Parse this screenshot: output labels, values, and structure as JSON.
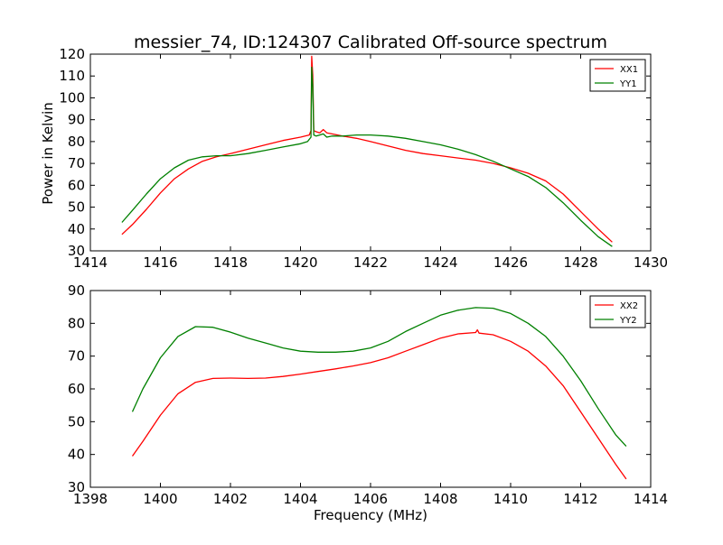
{
  "figure": {
    "title": "messier_74, ID:124307 Calibrated Off-source spectrum",
    "xlabel": "Frequency (MHz)",
    "ylabel": "Power in Kelvin"
  },
  "colors": {
    "red": "#ff0000",
    "green": "#008000",
    "axis": "#000000"
  },
  "chart_data": [
    {
      "type": "line",
      "title": "messier_74, ID:124307 Calibrated Off-source spectrum",
      "xlabel": "",
      "ylabel": "Power in Kelvin",
      "xlim": [
        1414,
        1430
      ],
      "ylim": [
        30,
        120
      ],
      "xticks": [
        "1414",
        "1416",
        "1418",
        "1420",
        "1422",
        "1424",
        "1426",
        "1428",
        "1430"
      ],
      "yticks": [
        "30",
        "40",
        "50",
        "60",
        "70",
        "80",
        "90",
        "100",
        "110",
        "120"
      ],
      "legend": "top-right",
      "grid": false,
      "series": [
        {
          "name": "XX1",
          "color": "#ff0000",
          "x": [
            1414.9,
            1415.2,
            1415.6,
            1416.0,
            1416.4,
            1416.8,
            1417.2,
            1417.6,
            1418.0,
            1418.5,
            1419.0,
            1419.5,
            1420.0,
            1420.25,
            1420.3,
            1420.32,
            1420.35,
            1420.38,
            1420.45,
            1420.55,
            1420.65,
            1420.75,
            1420.9,
            1421.2,
            1421.6,
            1422.0,
            1422.5,
            1423.0,
            1423.5,
            1424.0,
            1424.5,
            1425.0,
            1425.5,
            1426.0,
            1426.5,
            1427.0,
            1427.5,
            1428.0,
            1428.5,
            1428.9
          ],
          "values": [
            37.5,
            42,
            49,
            56.5,
            63,
            67.5,
            71,
            73,
            74.5,
            76.5,
            78.5,
            80.5,
            82,
            83,
            85,
            119,
            110,
            85,
            84.5,
            84,
            85.5,
            84,
            83.5,
            82.5,
            81.5,
            80,
            78,
            76,
            74.5,
            73.5,
            72.5,
            71.5,
            70,
            68,
            65.5,
            62,
            56,
            48,
            40,
            34
          ]
        },
        {
          "name": "YY1",
          "color": "#008000",
          "x": [
            1414.9,
            1415.2,
            1415.6,
            1416.0,
            1416.4,
            1416.8,
            1417.2,
            1417.6,
            1418.0,
            1418.5,
            1419.0,
            1419.5,
            1420.0,
            1420.2,
            1420.3,
            1420.32,
            1420.35,
            1420.38,
            1420.45,
            1420.55,
            1420.65,
            1420.75,
            1420.9,
            1421.2,
            1421.6,
            1422.0,
            1422.5,
            1423.0,
            1423.5,
            1424.0,
            1424.5,
            1425.0,
            1425.5,
            1426.0,
            1426.5,
            1427.0,
            1427.5,
            1428.0,
            1428.5,
            1428.9
          ],
          "values": [
            43,
            48.5,
            56,
            63,
            68,
            71.5,
            73,
            73.5,
            73.5,
            74.5,
            76,
            77.5,
            79,
            80,
            82,
            114,
            105,
            83,
            82.5,
            83,
            83.5,
            82,
            82.5,
            82.5,
            83,
            83,
            82.5,
            81.5,
            80,
            78.5,
            76.5,
            74,
            71,
            67.5,
            64,
            59,
            52,
            44,
            36.5,
            32
          ]
        }
      ]
    },
    {
      "type": "line",
      "title": "",
      "xlabel": "Frequency (MHz)",
      "ylabel": "",
      "xlim": [
        1398,
        1414
      ],
      "ylim": [
        30,
        90
      ],
      "xticks": [
        "1398",
        "1400",
        "1402",
        "1404",
        "1406",
        "1408",
        "1410",
        "1412",
        "1414"
      ],
      "yticks": [
        "30",
        "40",
        "50",
        "60",
        "70",
        "80",
        "90"
      ],
      "legend": "top-right",
      "grid": false,
      "series": [
        {
          "name": "XX2",
          "color": "#ff0000",
          "x": [
            1399.2,
            1399.5,
            1400.0,
            1400.5,
            1401.0,
            1401.5,
            1402.0,
            1402.5,
            1403.0,
            1403.5,
            1404.0,
            1404.5,
            1405.0,
            1405.5,
            1406.0,
            1406.5,
            1407.0,
            1407.5,
            1408.0,
            1408.5,
            1409.0,
            1409.05,
            1409.1,
            1409.5,
            1410.0,
            1410.5,
            1411.0,
            1411.5,
            1412.0,
            1412.5,
            1413.0,
            1413.3
          ],
          "values": [
            39.5,
            44,
            52,
            58.5,
            62,
            63.2,
            63.3,
            63.2,
            63.3,
            63.8,
            64.5,
            65.3,
            66.1,
            67,
            68,
            69.5,
            71.5,
            73.5,
            75.5,
            76.8,
            77.2,
            78,
            77,
            76.5,
            74.5,
            71.5,
            67,
            61,
            53,
            45,
            37,
            32.5
          ]
        },
        {
          "name": "YY2",
          "color": "#008000",
          "x": [
            1399.2,
            1399.5,
            1400.0,
            1400.5,
            1401.0,
            1401.5,
            1402.0,
            1402.5,
            1403.0,
            1403.5,
            1404.0,
            1404.5,
            1405.0,
            1405.5,
            1406.0,
            1406.5,
            1407.0,
            1407.5,
            1408.0,
            1408.5,
            1409.0,
            1409.5,
            1410.0,
            1410.5,
            1411.0,
            1411.5,
            1412.0,
            1412.5,
            1413.0,
            1413.3
          ],
          "values": [
            53,
            60,
            69.5,
            76,
            79,
            78.8,
            77.3,
            75.5,
            74,
            72.5,
            71.5,
            71.2,
            71.2,
            71.5,
            72.5,
            74.5,
            77.5,
            80,
            82.5,
            84,
            84.8,
            84.6,
            83,
            80,
            76,
            70,
            62.5,
            54,
            46,
            42.5
          ]
        }
      ]
    }
  ]
}
